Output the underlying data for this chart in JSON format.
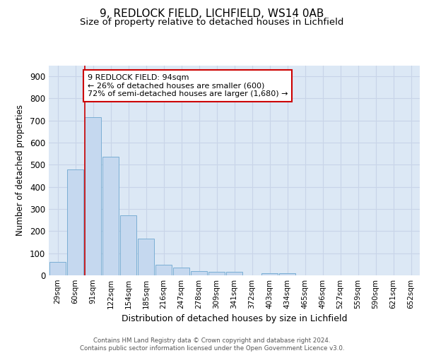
{
  "title1": "9, REDLOCK FIELD, LICHFIELD, WS14 0AB",
  "title2": "Size of property relative to detached houses in Lichfield",
  "xlabel": "Distribution of detached houses by size in Lichfield",
  "ylabel": "Number of detached properties",
  "categories": [
    "29sqm",
    "60sqm",
    "91sqm",
    "122sqm",
    "154sqm",
    "185sqm",
    "216sqm",
    "247sqm",
    "278sqm",
    "309sqm",
    "341sqm",
    "372sqm",
    "403sqm",
    "434sqm",
    "465sqm",
    "496sqm",
    "527sqm",
    "559sqm",
    "590sqm",
    "621sqm",
    "652sqm"
  ],
  "values": [
    60,
    480,
    715,
    537,
    272,
    165,
    47,
    35,
    18,
    15,
    15,
    0,
    10,
    10,
    0,
    0,
    0,
    0,
    0,
    0,
    0
  ],
  "bar_color": "#c5d8ef",
  "bar_edge_color": "#7aaed4",
  "annotation_text": "9 REDLOCK FIELD: 94sqm\n← 26% of detached houses are smaller (600)\n72% of semi-detached houses are larger (1,680) →",
  "annotation_box_color": "#ffffff",
  "annotation_box_edge": "#cc0000",
  "vline_color": "#cc0000",
  "vline_x_index": 2,
  "ylim": [
    0,
    950
  ],
  "yticks": [
    0,
    100,
    200,
    300,
    400,
    500,
    600,
    700,
    800,
    900
  ],
  "grid_color": "#c8d4e8",
  "background_color": "#dce8f5",
  "footer": "Contains HM Land Registry data © Crown copyright and database right 2024.\nContains public sector information licensed under the Open Government Licence v3.0.",
  "title1_fontsize": 11,
  "title2_fontsize": 9.5
}
